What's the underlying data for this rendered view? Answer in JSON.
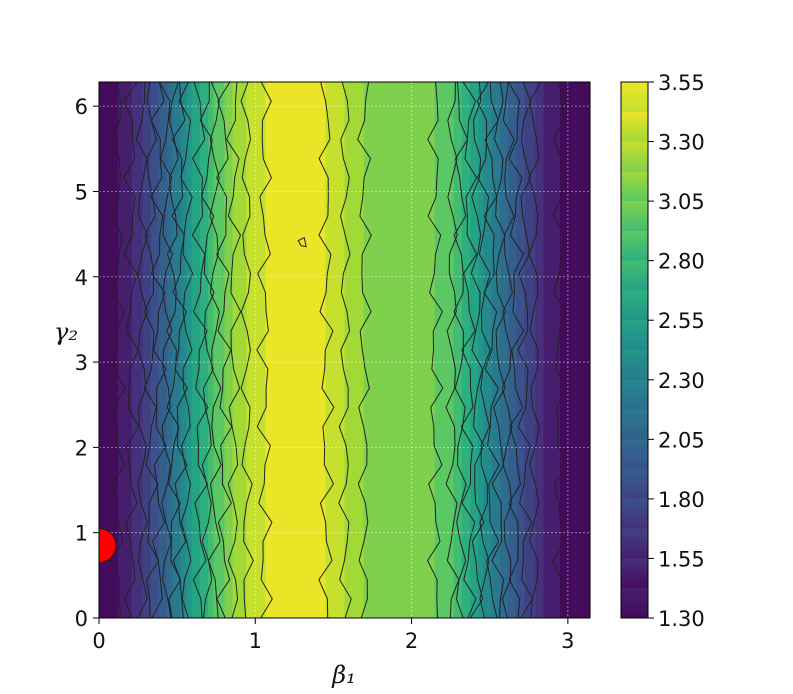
{
  "chart_data": {
    "type": "heatmap",
    "subtype": "filled-contour",
    "xlabel": "β₁",
    "ylabel": "γ₂",
    "xlim": [
      0,
      3.1416
    ],
    "ylim": [
      0,
      6.2832
    ],
    "x_ticks": [
      "0",
      "1",
      "2",
      "3"
    ],
    "y_ticks": [
      "0",
      "1",
      "2",
      "3",
      "4",
      "5",
      "6"
    ],
    "grid": true,
    "colormap": "viridis",
    "colorbar": {
      "min": 1.3,
      "max": 3.55,
      "ticks": [
        "1.30",
        "1.55",
        "1.80",
        "2.05",
        "2.30",
        "2.55",
        "2.80",
        "3.05",
        "3.30",
        "3.55"
      ]
    },
    "z_profile_along_x": {
      "x": [
        0,
        0.15,
        0.3,
        0.45,
        0.6,
        0.75,
        0.9,
        1.05,
        1.2,
        1.35,
        1.5,
        1.65,
        1.8,
        1.95,
        2.1,
        2.25,
        2.4,
        2.55,
        2.7,
        2.85,
        3.0,
        3.1416
      ],
      "z": [
        1.33,
        1.45,
        1.72,
        2.1,
        2.55,
        2.95,
        3.25,
        3.42,
        3.5,
        3.48,
        3.4,
        3.2,
        3.12,
        3.15,
        3.1,
        2.95,
        2.6,
        2.2,
        1.85,
        1.55,
        1.36,
        1.32
      ]
    },
    "local_max_marker": {
      "x": 1.3,
      "y": 4.4
    },
    "optimum_marker": {
      "x": 0.0,
      "y": 0.85,
      "color": "#ff0000"
    }
  }
}
